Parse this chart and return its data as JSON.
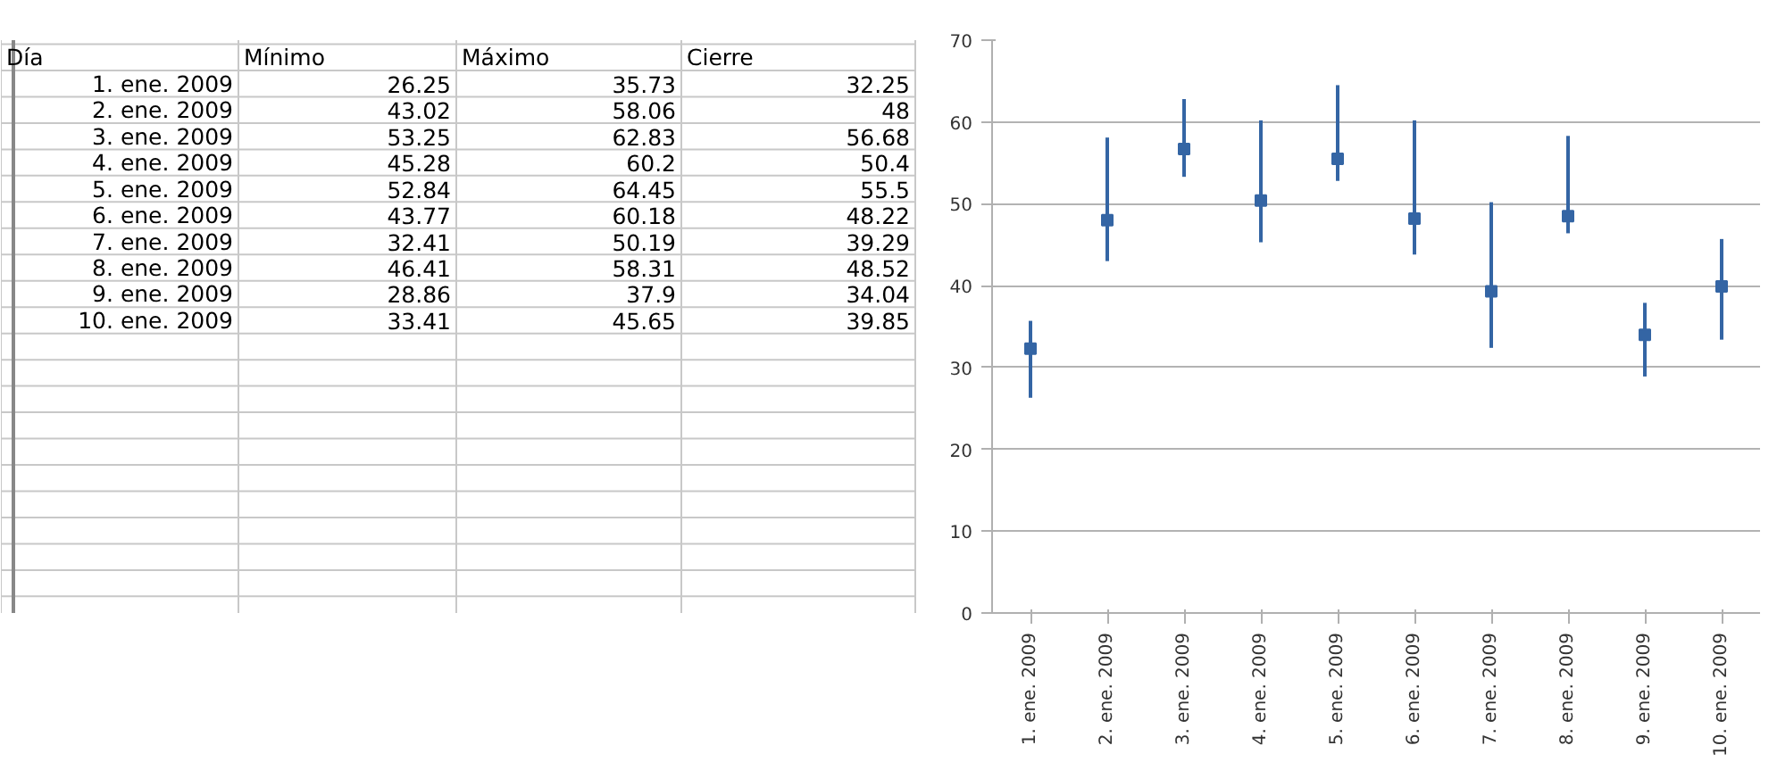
{
  "chart_data": [
    {
      "type": "other",
      "xlabel": "Día",
      "categories": [
        "1. ene. 2009",
        "2. ene. 2009",
        "3. ene. 2009",
        "4. ene. 2009",
        "5. ene. 2009",
        "6. ene. 2009",
        "7. ene. 2009",
        "8. ene. 2009",
        "9. ene. 2009",
        "10. ene. 2009"
      ],
      "series": [
        {
          "name": "Mínimo",
          "values": [
            26.25,
            43.02,
            53.25,
            45.28,
            52.84,
            43.77,
            32.41,
            46.41,
            28.86,
            33.41
          ]
        },
        {
          "name": "Máximo",
          "values": [
            35.73,
            58.06,
            62.83,
            60.2,
            64.45,
            60.18,
            50.19,
            58.31,
            37.9,
            45.65
          ]
        },
        {
          "name": "Cierre",
          "values": [
            32.25,
            48,
            56.68,
            50.4,
            55.5,
            48.22,
            39.29,
            48.52,
            34.04,
            39.85
          ]
        }
      ],
      "data_labels": true
    },
    {
      "type": "scatter",
      "categories": [
        "1. ene. 2009",
        "2. ene. 2009",
        "3. ene. 2009",
        "4. ene. 2009",
        "5. ene. 2009",
        "6. ene. 2009",
        "7. ene. 2009",
        "8. ene. 2009",
        "9. ene. 2009",
        "10. ene. 2009"
      ],
      "values": [
        32.3,
        48,
        56.7,
        50.4,
        55.5,
        48.2,
        39.3,
        48.5,
        34,
        39.9
      ],
      "errors": [
        [
          26.3,
          35.7
        ],
        [
          43,
          58.1
        ],
        [
          53.3,
          62.8
        ],
        [
          45.3,
          60.2
        ],
        [
          52.8,
          64.5
        ],
        [
          43.8,
          60.2
        ],
        [
          32.4,
          50.2
        ],
        [
          46.4,
          58.3
        ],
        [
          28.9,
          37.9
        ],
        [
          33.4,
          45.7
        ]
      ],
      "color": "#3465a4",
      "ylim": [
        0,
        70
      ],
      "yticks": [
        0,
        10,
        20,
        30,
        40,
        50,
        60,
        70
      ],
      "grid": "y"
    }
  ]
}
